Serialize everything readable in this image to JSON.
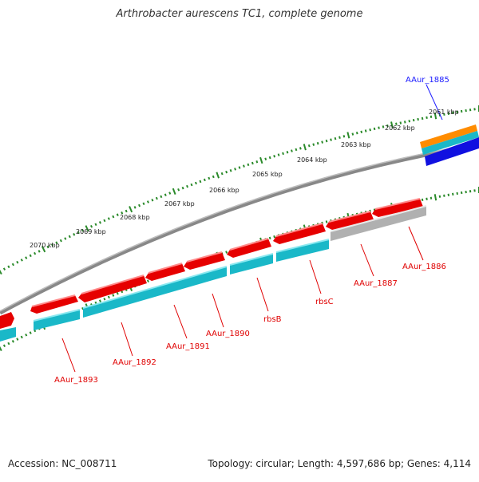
{
  "title": "Arthrobacter aurescens TC1, complete genome",
  "footer": {
    "accession": "Accession: NC_008711",
    "topology": "Topology: circular; Length: 4,597,686 bp; Genes: 4,114"
  },
  "scale_labels": [
    "2070 kbp",
    "2069 kbp",
    "2068 kbp",
    "2067 kbp",
    "2066 kbp",
    "2065 kbp",
    "2064 kbp",
    "2063 kbp",
    "2062 kbp",
    "2061 kbp"
  ],
  "gene_labels": [
    {
      "name": "AAur_1885",
      "color": "#1a1aff"
    },
    {
      "name": "AAur_1886",
      "color": "#e00000"
    },
    {
      "name": "AAur_1887",
      "color": "#e00000"
    },
    {
      "name": "rbsC",
      "color": "#e00000"
    },
    {
      "name": "rbsB",
      "color": "#e00000"
    },
    {
      "name": "AAur_1890",
      "color": "#e00000"
    },
    {
      "name": "AAur_1891",
      "color": "#e00000"
    },
    {
      "name": "AAur_1892",
      "color": "#e00000"
    },
    {
      "name": "AAur_1893",
      "color": "#e00000"
    }
  ],
  "colors": {
    "cds_red": "#e60000",
    "cds_cyan": "#1ab8c8",
    "cds_grey": "#b0b0b0",
    "cds_orange": "#ff8c00",
    "cds_blue": "#1010e0",
    "backbone": "#777777",
    "ticks": "#2a8a2a"
  }
}
